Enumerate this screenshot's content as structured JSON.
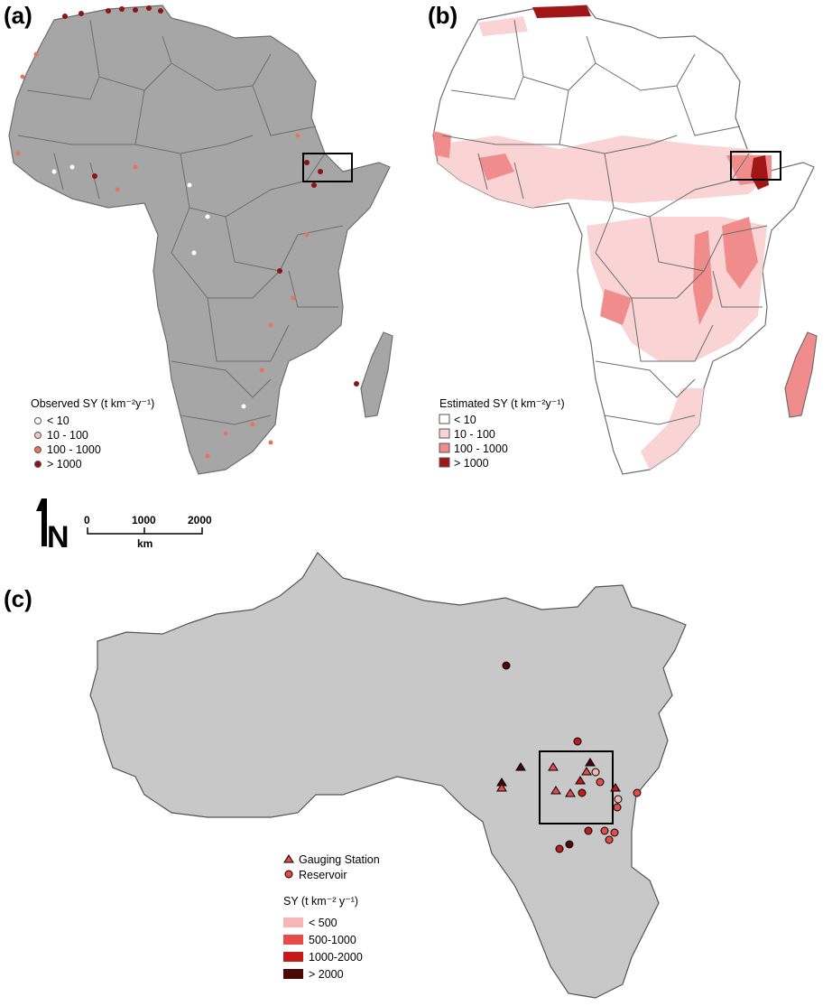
{
  "panels": {
    "a": {
      "label": "(a)"
    },
    "b": {
      "label": "(b)"
    },
    "c": {
      "label": "(c)"
    }
  },
  "legend_a": {
    "title": "Observed SY (t km⁻²y⁻¹)",
    "items": [
      {
        "label": "< 10",
        "color": "#ffffff"
      },
      {
        "label": "10 - 100",
        "color": "#f6c6c0"
      },
      {
        "label": "100 - 1000",
        "color": "#e8735f"
      },
      {
        "label": "> 1000",
        "color": "#8b1414"
      }
    ]
  },
  "legend_b": {
    "title": "Estimated SY (t km⁻²y⁻¹)",
    "items": [
      {
        "label": "< 10",
        "color": "#ffffff"
      },
      {
        "label": "10 - 100",
        "color": "#fad4d4"
      },
      {
        "label": "100 - 1000",
        "color": "#f08c8c"
      },
      {
        "label": "> 1000",
        "color": "#a01515"
      }
    ]
  },
  "scale_bar": {
    "ticks": [
      "0",
      "1000",
      "2000"
    ],
    "unit": "km",
    "north": "N"
  },
  "legend_c": {
    "symbols": [
      {
        "label": "Gauging Station",
        "shape": "triangle"
      },
      {
        "label": "Reservoir",
        "shape": "circle"
      }
    ],
    "title": "SY (t km⁻² y⁻¹)",
    "items": [
      {
        "label": "< 500",
        "color": "#f7b6b6"
      },
      {
        "label": "500-1000",
        "color": "#e84a4a"
      },
      {
        "label": "1000-2000",
        "color": "#c41a1a"
      },
      {
        "label": "> 2000",
        "color": "#4a0808"
      }
    ]
  },
  "colors": {
    "land_gray": "#a6a6a6",
    "border": "#6e6e6e",
    "basin_gray": "#c8c8c8",
    "basin_border": "#555555"
  }
}
